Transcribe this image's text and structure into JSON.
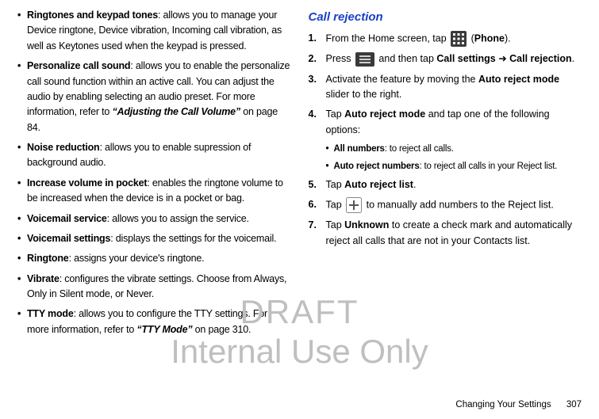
{
  "left_column": {
    "items": [
      {
        "term": "Ringtones and keypad tones",
        "desc": ": allows you to manage your Device ringtone, Device vibration, Incoming call vibration, as well as Keytones used when the keypad is pressed."
      },
      {
        "term": "Personalize call sound",
        "desc": ": allows you to enable the personalize call sound function within an active call. You can adjust the audio by enabling selecting an audio preset. For more information, refer to ",
        "ref": "“Adjusting the Call Volume”",
        "tail": "  on page 84."
      },
      {
        "term": "Noise reduction",
        "desc": ": allows you to enable supression of background audio."
      },
      {
        "term": "Increase volume in pocket",
        "desc": ": enables the ringtone volume to be increased when the device is in a pocket or bag."
      },
      {
        "term": "Voicemail service",
        "desc": ": allows you to assign the service."
      },
      {
        "term": "Voicemail settings",
        "desc": ": displays the settings for the voicemail."
      },
      {
        "term": "Ringtone",
        "desc": ": assigns your device's ringtone."
      },
      {
        "term": "Vibrate",
        "desc": ": configures the vibrate settings. Choose from Always, Only in Silent mode, or Never."
      },
      {
        "term": "TTY mode",
        "desc": ": allows you to configure the TTY settings. For more information, refer to ",
        "ref": "“TTY Mode”",
        "tail": "  on page 310."
      }
    ]
  },
  "right_column": {
    "title": "Call rejection",
    "steps": [
      {
        "n": "1.",
        "pre": "From the Home screen, tap ",
        "icon": "grid",
        "post_b": "Phone",
        "post": ")."
      },
      {
        "n": "2.",
        "pre": "Press ",
        "icon": "menu",
        "mid": " and then tap ",
        "b1": "Call settings",
        "arrow": " ➜ ",
        "b2": "Call rejection",
        "end": "."
      },
      {
        "n": "3.",
        "pre": "Activate the feature by moving the ",
        "b1": "Auto reject mode",
        "end": " slider to the right."
      },
      {
        "n": "4.",
        "pre": "Tap ",
        "b1": "Auto reject mode",
        "end": " and tap one of the following options:"
      },
      {
        "sub": true,
        "term": "All numbers",
        "desc": ": to reject all calls."
      },
      {
        "sub": true,
        "term": "Auto reject numbers",
        "desc": ": to reject all calls in your Reject list."
      },
      {
        "n": "5.",
        "pre": "Tap ",
        "b1": "Auto reject list",
        "end": "."
      },
      {
        "n": "6.",
        "pre": "Tap ",
        "icon": "plus",
        "end": " to manually add numbers to the Reject list."
      },
      {
        "n": "7.",
        "pre": "Tap ",
        "b1": "Unknown",
        "end": " to create a check mark and automatically reject all calls that are not in your Contacts list."
      }
    ]
  },
  "footer": {
    "section": "Changing Your Settings",
    "page": "307"
  },
  "watermark": {
    "line1": "DRAFT",
    "line2": "Internal Use Only"
  },
  "icons": {
    "grid_bg": "#3a3a3a",
    "grid_fg": "#ffffff",
    "menu_bg": "#3a3a3a",
    "menu_fg": "#d0d0d0",
    "plus_border": "#888888",
    "plus_fg": "#555555",
    "plus_bg": "#ffffff"
  }
}
